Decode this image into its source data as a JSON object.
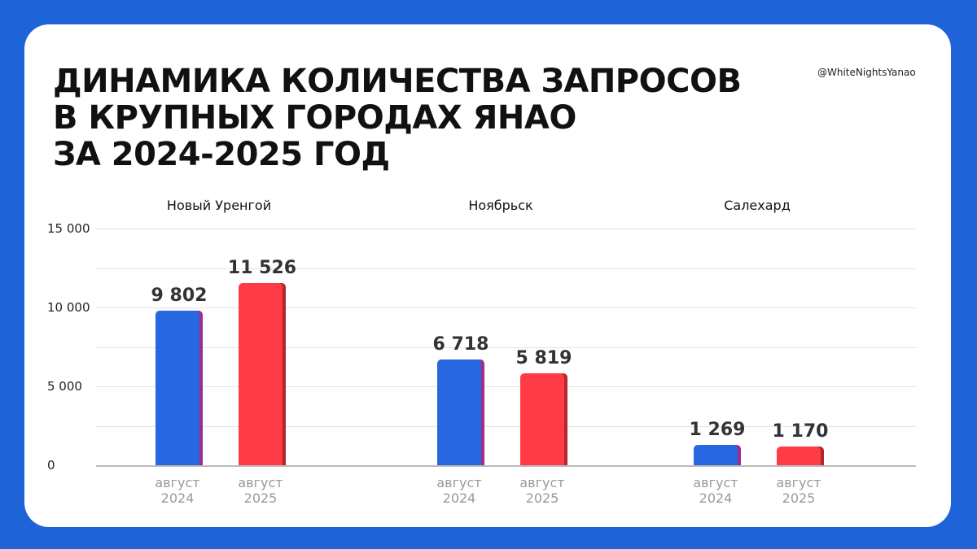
{
  "chart_data": {
    "type": "bar",
    "title": "ДИНАМИКА КОЛИЧЕСТВА ЗАПРОСОВ\nВ КРУПНЫХ ГОРОДАХ ЯНАО\nЗА 2024-2025 ГОД",
    "annotation": "@WhiteNightsYanao",
    "categories": [
      "Новый Уренгой",
      "Ноябрьск",
      "Салехард"
    ],
    "series": [
      {
        "name": "август 2024",
        "color": "#2767e0",
        "values": [
          9802,
          6718,
          1269
        ],
        "value_labels": [
          "9 802",
          "6 718",
          "1 269"
        ]
      },
      {
        "name": "август 2025",
        "color": "#ff3c46",
        "values": [
          11526,
          5819,
          1170
        ],
        "value_labels": [
          "11 526",
          "5 819",
          "1 170"
        ]
      }
    ],
    "ylim": [
      0,
      15000
    ],
    "yticks": [
      {
        "value": 0,
        "label": "0"
      },
      {
        "value": 5000,
        "label": "5 000"
      },
      {
        "value": 10000,
        "label": "10 000"
      },
      {
        "value": 15000,
        "label": "15 000"
      }
    ],
    "minor_yticks": [
      2500,
      7500,
      12500
    ],
    "grid": true
  }
}
